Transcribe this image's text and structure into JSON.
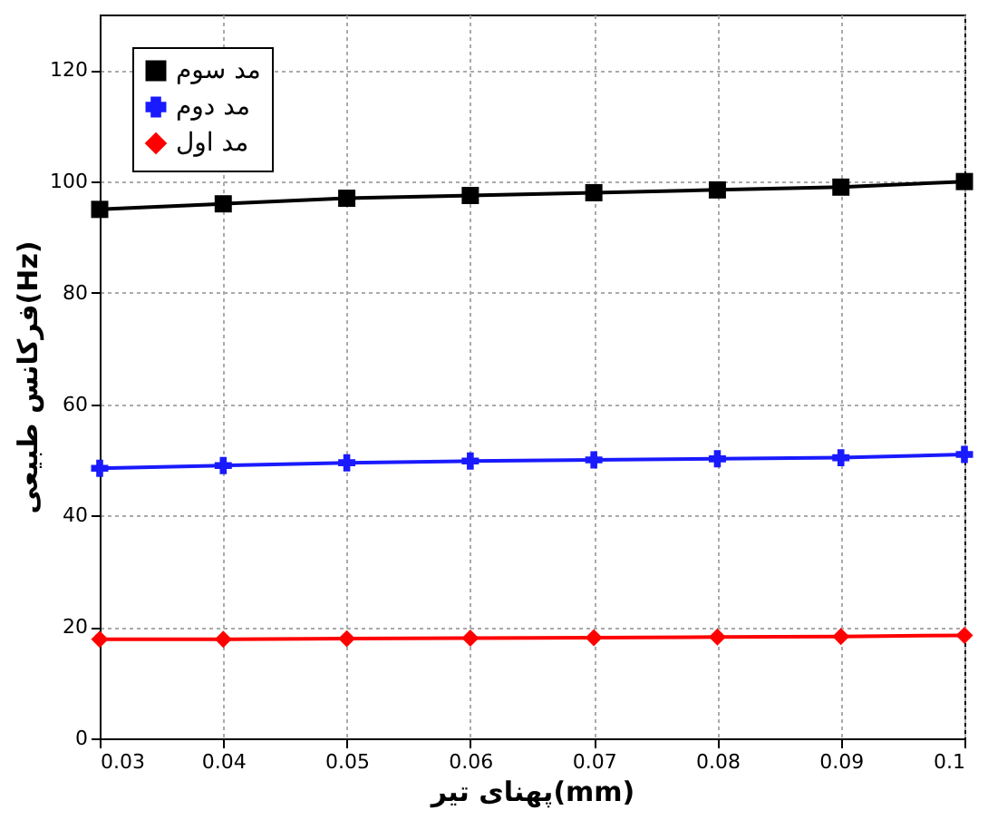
{
  "chart_data": {
    "type": "line",
    "xlabel": "پهنای تیر(mm)",
    "ylabel": "فرکانس طبیعی(Hz)",
    "x": [
      0.03,
      0.04,
      0.05,
      0.06,
      0.07,
      0.08,
      0.09,
      0.1
    ],
    "series": [
      {
        "name": "مد سوم",
        "color": "#000000",
        "marker": "square",
        "values": [
          95,
          96,
          97,
          97.5,
          98,
          98.5,
          99,
          100
        ]
      },
      {
        "name": "مد دوم",
        "color": "#1a1aff",
        "marker": "cross",
        "values": [
          48.5,
          49,
          49.5,
          49.8,
          50,
          50.2,
          50.4,
          51
        ]
      },
      {
        "name": "مد اول",
        "color": "#ff0000",
        "marker": "diamond",
        "values": [
          17.8,
          17.8,
          17.9,
          18,
          18.1,
          18.2,
          18.3,
          18.5
        ]
      }
    ],
    "xlim": [
      0.03,
      0.1
    ],
    "xticks": [
      0.03,
      0.04,
      0.05,
      0.06,
      0.07,
      0.08,
      0.09,
      0.1
    ],
    "ylim": [
      0,
      130
    ],
    "yticks": [
      0,
      20,
      40,
      60,
      80,
      100,
      120
    ],
    "grid": true,
    "legend": "top left",
    "line_style": "solid"
  }
}
